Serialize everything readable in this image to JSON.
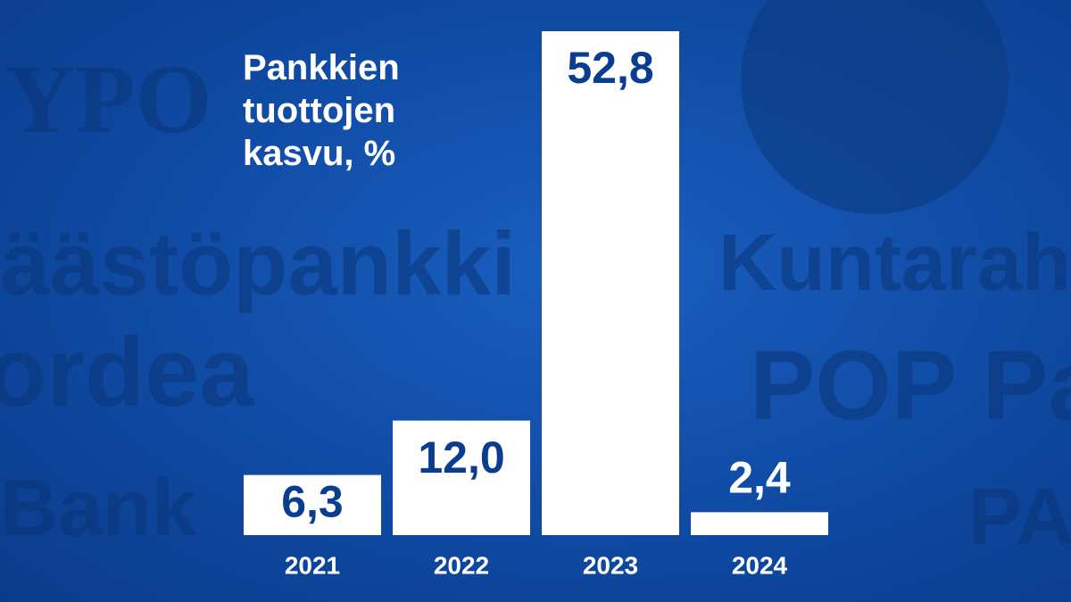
{
  "chart_data": {
    "type": "bar",
    "title": "Pankkien tuottojen kasvu, %",
    "categories": [
      "2021",
      "2022",
      "2023",
      "2024"
    ],
    "values": [
      6.3,
      12.0,
      52.8,
      2.4
    ],
    "value_labels": [
      "6,3",
      "12,0",
      "52,8",
      "2,4"
    ],
    "color": "#ffffff",
    "label_color": "#0a3d8f"
  },
  "background": {
    "texts": [
      "YPO",
      "äästöpankki",
      "ordea",
      "Bank",
      "Kuntarahe",
      "POP Pa",
      "PA"
    ]
  }
}
